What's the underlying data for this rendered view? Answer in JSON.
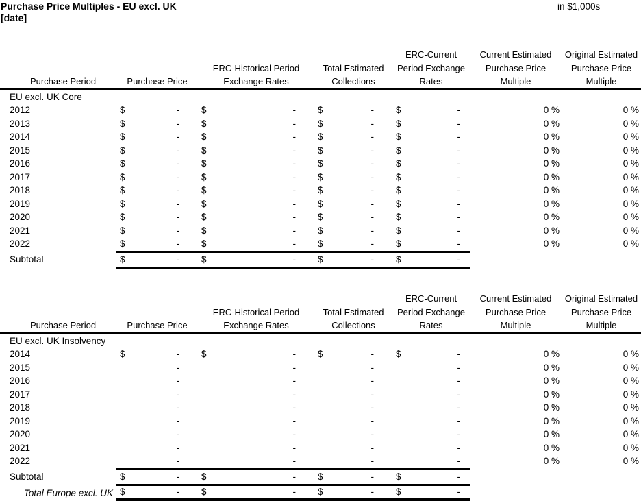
{
  "report": {
    "title": "Purchase Price Multiples - EU excl. UK",
    "date": "[date]",
    "units": "in $1,000s",
    "currency_symbol": "$",
    "colors": {
      "text": "#000000",
      "background": "#ffffff",
      "rule": "#000000"
    },
    "column_headers": [
      [
        "Purchase Period"
      ],
      [
        "Purchase Price"
      ],
      [
        "ERC-Historical Period",
        "Exchange Rates"
      ],
      [
        "Total Estimated",
        "Collections"
      ],
      [
        "ERC-Current",
        "Period Exchange",
        "Rates"
      ],
      [
        "Current Estimated",
        "Purchase Price",
        "Multiple"
      ],
      [
        "Original Estimated",
        "Purchase Price",
        "Multiple"
      ]
    ],
    "tables": [
      {
        "id": "core",
        "group_label": "EU excl. UK Core",
        "rows": [
          {
            "period": "2012",
            "currency": true,
            "amounts": [
              "-",
              "-",
              "-",
              "-"
            ],
            "current_multiple": "0 %",
            "original_multiple": "0 %"
          },
          {
            "period": "2013",
            "currency": true,
            "amounts": [
              "-",
              "-",
              "-",
              "-"
            ],
            "current_multiple": "0 %",
            "original_multiple": "0 %"
          },
          {
            "period": "2014",
            "currency": true,
            "amounts": [
              "-",
              "-",
              "-",
              "-"
            ],
            "current_multiple": "0 %",
            "original_multiple": "0 %"
          },
          {
            "period": "2015",
            "currency": true,
            "amounts": [
              "-",
              "-",
              "-",
              "-"
            ],
            "current_multiple": "0 %",
            "original_multiple": "0 %"
          },
          {
            "period": "2016",
            "currency": true,
            "amounts": [
              "-",
              "-",
              "-",
              "-"
            ],
            "current_multiple": "0 %",
            "original_multiple": "0 %"
          },
          {
            "period": "2017",
            "currency": true,
            "amounts": [
              "-",
              "-",
              "-",
              "-"
            ],
            "current_multiple": "0 %",
            "original_multiple": "0 %"
          },
          {
            "period": "2018",
            "currency": true,
            "amounts": [
              "-",
              "-",
              "-",
              "-"
            ],
            "current_multiple": "0 %",
            "original_multiple": "0 %"
          },
          {
            "period": "2019",
            "currency": true,
            "amounts": [
              "-",
              "-",
              "-",
              "-"
            ],
            "current_multiple": "0 %",
            "original_multiple": "0 %"
          },
          {
            "period": "2020",
            "currency": true,
            "amounts": [
              "-",
              "-",
              "-",
              "-"
            ],
            "current_multiple": "0 %",
            "original_multiple": "0 %"
          },
          {
            "period": "2021",
            "currency": true,
            "amounts": [
              "-",
              "-",
              "-",
              "-"
            ],
            "current_multiple": "0 %",
            "original_multiple": "0 %"
          },
          {
            "period": "2022",
            "currency": true,
            "amounts": [
              "-",
              "-",
              "-",
              "-"
            ],
            "current_multiple": "0 %",
            "original_multiple": "0 %"
          }
        ],
        "subtotal": {
          "label": "Subtotal",
          "currency": true,
          "amounts": [
            "-",
            "-",
            "-",
            "-"
          ]
        }
      },
      {
        "id": "insolvency",
        "group_label": "EU excl. UK Insolvency",
        "rows": [
          {
            "period": "2014",
            "currency": true,
            "amounts": [
              "-",
              "-",
              "-",
              "-"
            ],
            "current_multiple": "0 %",
            "original_multiple": "0 %"
          },
          {
            "period": "2015",
            "currency": false,
            "amounts": [
              "-",
              "-",
              "-",
              "-"
            ],
            "current_multiple": "0 %",
            "original_multiple": "0 %"
          },
          {
            "period": "2016",
            "currency": false,
            "amounts": [
              "-",
              "-",
              "-",
              "-"
            ],
            "current_multiple": "0 %",
            "original_multiple": "0 %"
          },
          {
            "period": "2017",
            "currency": false,
            "amounts": [
              "-",
              "-",
              "-",
              "-"
            ],
            "current_multiple": "0 %",
            "original_multiple": "0 %"
          },
          {
            "period": "2018",
            "currency": false,
            "amounts": [
              "-",
              "-",
              "-",
              "-"
            ],
            "current_multiple": "0 %",
            "original_multiple": "0 %"
          },
          {
            "period": "2019",
            "currency": false,
            "amounts": [
              "-",
              "-",
              "-",
              "-"
            ],
            "current_multiple": "0 %",
            "original_multiple": "0 %"
          },
          {
            "period": "2020",
            "currency": false,
            "amounts": [
              "-",
              "-",
              "-",
              "-"
            ],
            "current_multiple": "0 %",
            "original_multiple": "0 %"
          },
          {
            "period": "2021",
            "currency": false,
            "amounts": [
              "-",
              "-",
              "-",
              "-"
            ],
            "current_multiple": "0 %",
            "original_multiple": "0 %"
          },
          {
            "period": "2022",
            "currency": false,
            "amounts": [
              "-",
              "-",
              "-",
              "-"
            ],
            "current_multiple": "0 %",
            "original_multiple": "0 %"
          }
        ],
        "subtotal": {
          "label": "Subtotal",
          "currency": true,
          "amounts": [
            "-",
            "-",
            "-",
            "-"
          ]
        },
        "total": {
          "label": "Total Europe excl. UK",
          "currency": true,
          "amounts": [
            "-",
            "-",
            "-",
            "-"
          ]
        }
      }
    ]
  }
}
